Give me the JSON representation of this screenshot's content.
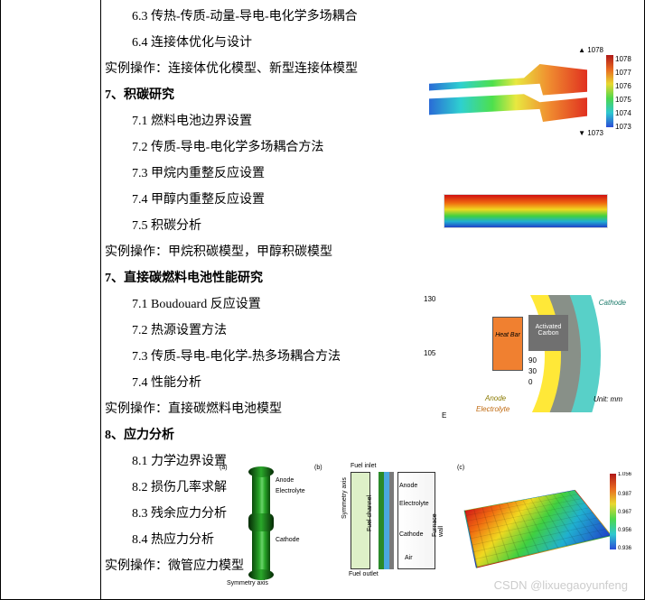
{
  "lines": {
    "l63": "6.3 传热-传质-动量-导电-电化学多场耦合",
    "l64": "6.4 连接体优化与设计",
    "p6": "实例操作：连接体优化模型、新型连接体模型",
    "h7a": "7、积碳研究",
    "l71": "7.1 燃料电池边界设置",
    "l72": "7.2 传质-导电-电化学多场耦合方法",
    "l73": "7.3 甲烷内重整反应设置",
    "l74": "7.4 甲醇内重整反应设置",
    "l75": "7.5 积碳分析",
    "p7a": "实例操作：甲烷积碳模型，甲醇积碳模型",
    "h7b": "7、直接碳燃料电池性能研究",
    "l71b": "7.1 Boudouard 反应设置",
    "l72b": "7.2 热源设置方法",
    "l73b": "7.3 传质-导电-电化学-热多场耦合方法",
    "l74b": "7.4 性能分析",
    "p7b": "实例操作：直接碳燃料电池模型",
    "h8": "8、应力分析",
    "l81": "8.1 力学边界设置",
    "l82": "8.2 损伤几率求解",
    "l83": "8.3 残余应力分析",
    "l84": "8.4 热应力分析",
    "p8": "实例操作：微管应力模型"
  },
  "watermark": "CSDN @lixuegaoyunfeng",
  "fig1": {
    "toplabel": "▲ 1078",
    "botlabel": "▼ 1073",
    "ticks": [
      "1078",
      "1077",
      "1076",
      "1075",
      "1074",
      "1073"
    ],
    "tick_top": [
      8,
      23,
      38,
      53,
      68,
      83
    ],
    "gradient": [
      "#2a6bd6",
      "#2ed0d0",
      "#4de04d",
      "#e8e840",
      "#f09030",
      "#e03020"
    ],
    "colorbar": [
      "#b01818",
      "#e86a20",
      "#e8d830",
      "#4dd84d",
      "#2ec8d0",
      "#2a4cd6"
    ]
  },
  "fig2": {
    "gradient": [
      "#d01010",
      "#f06a10",
      "#f0d820",
      "#40d040",
      "#20b0d0",
      "#2040c8"
    ]
  },
  "fig3": {
    "labels": {
      "cathode": "Cathode",
      "anode": "Anode",
      "electrolyte": "Electrolyte",
      "carbon": "Activated Carbon",
      "heat": "Heat Bar",
      "unit": "Unit: mm",
      "e": "E",
      "ax_y_top": "130",
      "ax_y_mid": "105",
      "ax_tick90": "90",
      "ax_tick30": "30",
      "ax_tick0": "0"
    },
    "colors": {
      "outer": "#58d0c8",
      "mid": "#889088",
      "inner": "#ffe838",
      "heat": "#f08030",
      "carbon": "#707070"
    }
  },
  "fig4": {
    "a": {
      "tag": "(a)",
      "anode": "Anode",
      "electrolyte": "Electrolyte",
      "cathode": "Cathode",
      "symaxis": "Symmetry axis"
    },
    "b": {
      "tag": "(b)",
      "fuel_in": "Fuel inlet",
      "fuel_out": "Fuel outlet",
      "anode": "Anode",
      "electrolyte": "Electrolyte",
      "cathode": "Cathode",
      "air": "Air",
      "furnace": "Furnace wall",
      "symaxis": "Symmetry axis",
      "fuelch": "Fuel channel"
    },
    "c": {
      "tag": "(c)",
      "ticks": [
        "1.056",
        "0.987",
        "0.967",
        "0.956",
        "0.936"
      ],
      "tick_top": [
        8,
        30,
        50,
        70,
        90
      ],
      "colorbar": [
        "#b01818",
        "#e86a20",
        "#e8d830",
        "#4dd84d",
        "#2ec8d0",
        "#2a4cd6"
      ]
    }
  }
}
